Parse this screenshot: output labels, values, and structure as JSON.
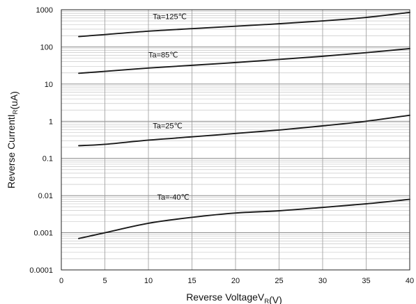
{
  "chart_data": {
    "type": "line",
    "xlabel": "Reverse Voltage",
    "xlabel_symbol": "V",
    "xlabel_sub": "R",
    "xlabel_unit": "(V)",
    "ylabel": "Reverse Current",
    "ylabel_symbol": "I",
    "ylabel_sub": "R",
    "ylabel_unit": "(uA)",
    "xlim": [
      0,
      40
    ],
    "ylim": [
      0.0001,
      1000
    ],
    "yscale": "log",
    "grid": true,
    "x_ticks": [
      0,
      5,
      10,
      15,
      20,
      25,
      30,
      35,
      40
    ],
    "x_tick_labels": [
      "0",
      "5",
      "10",
      "15",
      "20",
      "25",
      "30",
      "35",
      "40"
    ],
    "y_ticks": [
      0.0001,
      0.001,
      0.01,
      0.1,
      1,
      10,
      100,
      1000
    ],
    "y_tick_labels": [
      "0.0001",
      "0.001",
      "0.01",
      "0.1",
      "1",
      "10",
      "100",
      "1000"
    ],
    "series": [
      {
        "name": "Ta=125℃",
        "x": [
          2,
          5,
          10,
          15,
          20,
          25,
          30,
          35,
          40
        ],
        "y": [
          190,
          215,
          265,
          310,
          360,
          420,
          500,
          620,
          850
        ]
      },
      {
        "name": "Ta=85℃",
        "x": [
          2,
          5,
          10,
          15,
          20,
          25,
          30,
          35,
          40
        ],
        "y": [
          19.5,
          22,
          27,
          32,
          38,
          46,
          56,
          70,
          90
        ]
      },
      {
        "name": "Ta=25℃",
        "x": [
          2,
          5,
          10,
          15,
          20,
          25,
          30,
          35,
          40
        ],
        "y": [
          0.22,
          0.24,
          0.31,
          0.38,
          0.47,
          0.58,
          0.75,
          1.0,
          1.45
        ]
      },
      {
        "name": "Ta=-40℃",
        "x": [
          2,
          5,
          10,
          15,
          20,
          25,
          30,
          35,
          40
        ],
        "y": [
          0.0007,
          0.001,
          0.0018,
          0.0026,
          0.0034,
          0.0039,
          0.0048,
          0.006,
          0.0079
        ]
      }
    ]
  }
}
